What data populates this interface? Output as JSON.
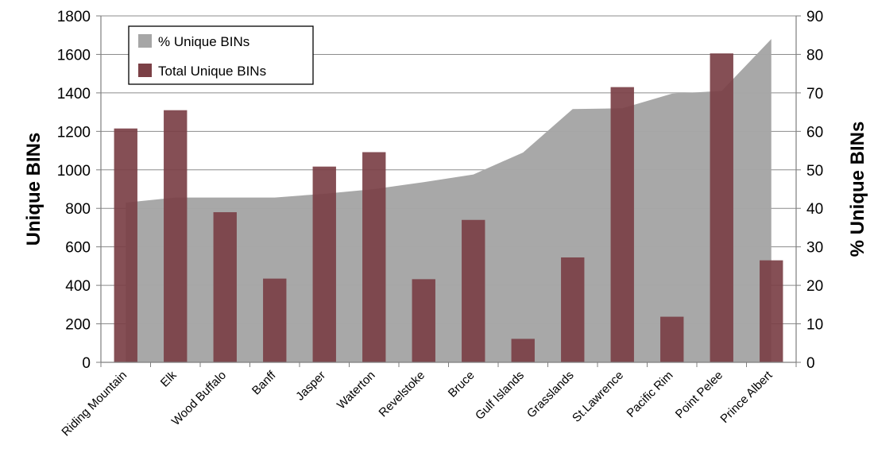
{
  "chart_data": {
    "type": "bar",
    "categories": [
      "Riding Mountain",
      "Elk",
      "Wood Buffalo",
      "Banff",
      "Jasper",
      "Waterton",
      "Revelstoke",
      "Bruce",
      "Gulf Islands",
      "Grasslands",
      "St.Lawrence",
      "Pacific Rim",
      "Point Pelee",
      "Prince Albert"
    ],
    "series": [
      {
        "name": "% Unique BINs",
        "type": "area",
        "axis": "right",
        "color": "#a6a6a6",
        "values": [
          41.5,
          42.8,
          42.8,
          42.8,
          43.8,
          45,
          46.8,
          48.8,
          54.5,
          65.8,
          66,
          69.8,
          70.5,
          84
        ]
      },
      {
        "name": "Total Unique BINs",
        "type": "bar",
        "axis": "left",
        "color": "#7b4046",
        "values": [
          1215,
          1310,
          780,
          435,
          1017,
          1092,
          432,
          740,
          122,
          545,
          1430,
          237,
          1605,
          530
        ]
      }
    ],
    "ylabel": "Unique BINs",
    "y2label": "% Unique BINs",
    "ylim": [
      0,
      1800
    ],
    "y2lim": [
      0,
      90
    ],
    "yticks": [
      "0",
      "200",
      "400",
      "600",
      "800",
      "1000",
      "1200",
      "1400",
      "1600",
      "1800"
    ],
    "y2ticks": [
      "0",
      "10",
      "20",
      "30",
      "40",
      "50",
      "60",
      "70",
      "80",
      "90"
    ],
    "grid": true,
    "legend": "top-left"
  }
}
